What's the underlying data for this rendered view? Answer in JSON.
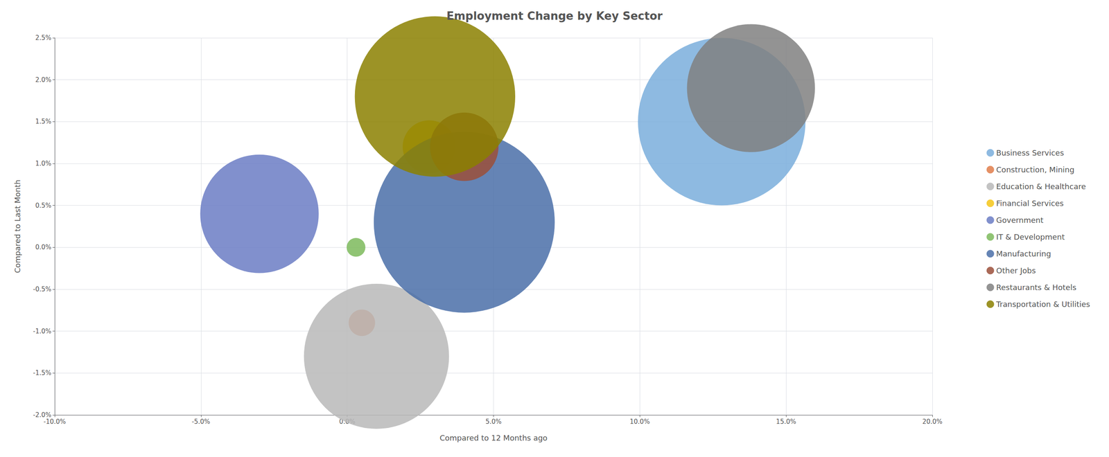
{
  "chart_data": {
    "type": "scatter",
    "title": "Employment Change by Key Sector",
    "xlabel": "Compared to 12 Months ago",
    "ylabel": "Compared to Last Month",
    "xlim": [
      -0.1,
      0.2
    ],
    "ylim": [
      -0.02,
      0.025
    ],
    "xticks": [
      {
        "value": -0.1,
        "label": "-10.0%"
      },
      {
        "value": -0.05,
        "label": "-5.0%"
      },
      {
        "value": 0.0,
        "label": "0.0%"
      },
      {
        "value": 0.05,
        "label": "5.0%"
      },
      {
        "value": 0.1,
        "label": "10.0%"
      },
      {
        "value": 0.15,
        "label": "15.0%"
      },
      {
        "value": 0.2,
        "label": "20.0%"
      }
    ],
    "yticks": [
      {
        "value": -0.02,
        "label": "-2.0%"
      },
      {
        "value": -0.015,
        "label": "-1.5%"
      },
      {
        "value": -0.01,
        "label": "-1.0%"
      },
      {
        "value": -0.005,
        "label": "-0.5%"
      },
      {
        "value": 0.0,
        "label": "0.0%"
      },
      {
        "value": 0.005,
        "label": "0.5%"
      },
      {
        "value": 0.01,
        "label": "1.0%"
      },
      {
        "value": 0.015,
        "label": "1.5%"
      },
      {
        "value": 0.02,
        "label": "2.0%"
      },
      {
        "value": 0.025,
        "label": "2.5%"
      }
    ],
    "grid": true,
    "legend": "right",
    "series": [
      {
        "name": "Business Services",
        "color": "#7aaedc",
        "x": [
          0.128
        ],
        "values": [
          0.015
        ],
        "size": [
          120000
        ]
      },
      {
        "name": "Construction, Mining",
        "color": "#e07c4a",
        "x": [
          0.005
        ],
        "values": [
          -0.009
        ],
        "size": [
          3000
        ]
      },
      {
        "name": "Education & Healthcare",
        "color": "#b8b8b8",
        "x": [
          0.01
        ],
        "values": [
          -0.013
        ],
        "size": [
          90000
        ]
      },
      {
        "name": "Financial Services",
        "color": "#f5c518",
        "x": [
          0.028
        ],
        "values": [
          0.012
        ],
        "size": [
          12000
        ]
      },
      {
        "name": "Government",
        "color": "#6b7cc4",
        "x": [
          -0.03
        ],
        "values": [
          0.004
        ],
        "size": [
          60000
        ]
      },
      {
        "name": "IT & Development",
        "color": "#7cba5c",
        "x": [
          0.003
        ],
        "values": [
          0.0
        ],
        "size": [
          1500
        ]
      },
      {
        "name": "Manufacturing",
        "color": "#4a6ea8",
        "x": [
          0.04
        ],
        "values": [
          0.003
        ],
        "size": [
          140000
        ]
      },
      {
        "name": "Other Jobs",
        "color": "#9b4f3a",
        "x": [
          0.04
        ],
        "values": [
          0.012
        ],
        "size": [
          20000
        ]
      },
      {
        "name": "Restaurants & Hotels",
        "color": "#808080",
        "x": [
          0.138
        ],
        "values": [
          0.019
        ],
        "size": [
          70000
        ]
      },
      {
        "name": "Transportation & Utilities",
        "color": "#8b8000",
        "x": [
          0.03
        ],
        "values": [
          0.018
        ],
        "size": [
          110000
        ]
      }
    ]
  }
}
